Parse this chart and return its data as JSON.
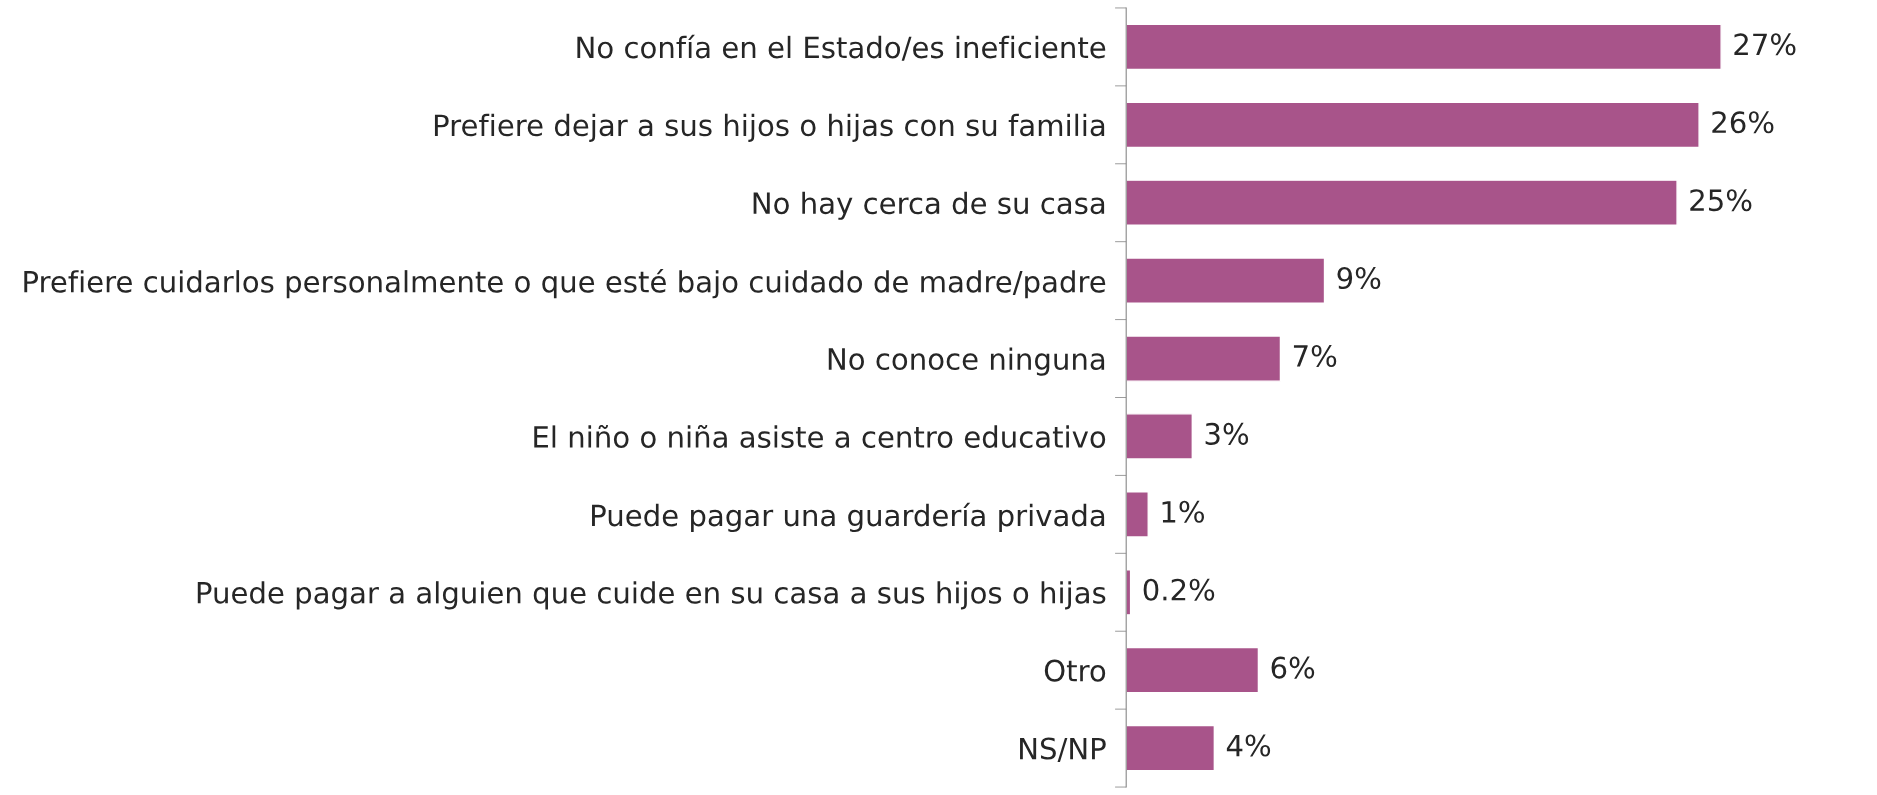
{
  "chart_data": {
    "type": "bar",
    "orientation": "horizontal",
    "categories": [
      "No confía en el Estado/es ineficiente",
      "Prefiere dejar a sus hijos o hijas con su familia",
      "No hay cerca de su casa",
      "Prefiere cuidarlos personalmente o que esté bajo cuidado de madre/padre",
      "No conoce ninguna",
      "El niño o niña asiste a centro educativo",
      "Puede pagar una guardería privada",
      "Puede pagar a alguien que cuide en su casa a sus hijos o hijas",
      "Otro",
      "NS/NP"
    ],
    "values": [
      27,
      26,
      25,
      9,
      7,
      3,
      1,
      0.2,
      6,
      4
    ],
    "value_labels": [
      "27%",
      "26%",
      "25%",
      "9%",
      "7%",
      "3%",
      "1%",
      "0.2%",
      "6%",
      "4%"
    ],
    "color": "#a8548a",
    "grid": false,
    "legend": false
  }
}
